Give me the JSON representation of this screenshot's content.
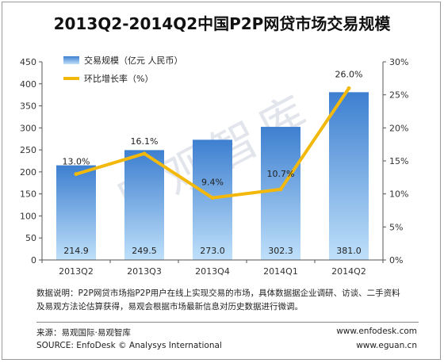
{
  "title": "2013Q2-2014Q2中国P2P网贷市场交易规模",
  "watermark": "易观智库",
  "legend": {
    "bar_label": "交易规模（亿元 人民币）",
    "line_label": "环比增长率（%）"
  },
  "chart_data": {
    "type": "bar",
    "categories": [
      "2013Q2",
      "2013Q3",
      "2013Q4",
      "2014Q1",
      "2014Q2"
    ],
    "series": [
      {
        "name": "交易规模（亿元 人民币）",
        "type": "bar",
        "axis": "left",
        "values": [
          214.9,
          249.5,
          273.0,
          302.3,
          381.0
        ],
        "labels": [
          "214.9",
          "249.5",
          "273.0",
          "302.3",
          "381.0"
        ]
      },
      {
        "name": "环比增长率（%）",
        "type": "line",
        "axis": "right",
        "values": [
          13.0,
          16.1,
          9.4,
          10.7,
          26.0
        ],
        "labels": [
          "13.0%",
          "16.1%",
          "9.4%",
          "10.7%",
          "26.0%"
        ]
      }
    ],
    "y_left": {
      "ylim": [
        0,
        450
      ],
      "ticks": [
        "0",
        "50",
        "100",
        "150",
        "200",
        "250",
        "300",
        "350",
        "400",
        "450"
      ]
    },
    "y_right": {
      "ylim": [
        0,
        30
      ],
      "ticks": [
        "0%",
        "5%",
        "10%",
        "15%",
        "20%",
        "25%",
        "30%"
      ]
    },
    "grid": false,
    "legend_position": "top-left",
    "colors": {
      "bar_top": "#3d7fd0",
      "bar_bottom": "#bfe0fa",
      "line": "#f2b90c"
    }
  },
  "notes": {
    "line1": "数据说明：P2P网贷市场指P2P用户在线上实现交易的市场，具体数据据企业调研、访谈、二手资料",
    "line2": "及易观方法论估算获得，易观会根据市场最新信息对历史数据进行微调。"
  },
  "source": {
    "cn": "来源：易观国际·易观智库",
    "en": "SOURCE: EnfoDesk © Analysys International",
    "url1": "www.enfodesk.com",
    "url2": "www.eguan.cn"
  }
}
